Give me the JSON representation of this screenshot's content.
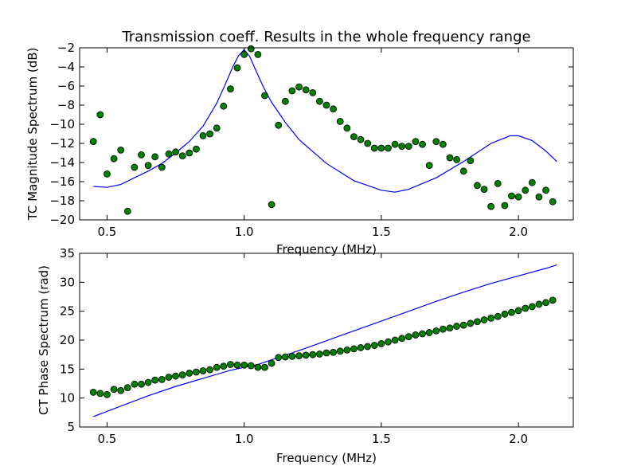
{
  "figure_title": "Transmission coeff. Results in the whole frequency range",
  "colors": {
    "line": "#0000ff",
    "marker_face": "#008000",
    "marker_edge": "#000000",
    "background": "#ffffff"
  },
  "chart_data": [
    {
      "type": "line+scatter",
      "title": "Transmission coeff. Results in the whole frequency range",
      "xlabel": "Frequency (MHz)",
      "ylabel": "TC Magnitude Spectrum (dB)",
      "xlim": [
        0.4,
        2.2
      ],
      "ylim": [
        -20,
        -2
      ],
      "xticks": [
        0.5,
        1.0,
        1.5,
        2.0
      ],
      "xtick_labels": [
        "0.5",
        "1.0",
        "1.5",
        "2.0"
      ],
      "yticks": [
        -20,
        -18,
        -16,
        -14,
        -12,
        -10,
        -8,
        -6,
        -4,
        -2
      ],
      "ytick_labels": [
        "−20",
        "−18",
        "−16",
        "−14",
        "−12",
        "−10",
        "−8",
        "−6",
        "−4",
        "−2"
      ],
      "grid": false,
      "series": [
        {
          "kind": "line",
          "x": [
            0.45,
            0.5,
            0.55,
            0.6,
            0.65,
            0.7,
            0.75,
            0.8,
            0.85,
            0.9,
            0.93,
            0.96,
            0.98,
            1.0,
            1.02,
            1.04,
            1.07,
            1.1,
            1.15,
            1.2,
            1.3,
            1.4,
            1.5,
            1.55,
            1.6,
            1.7,
            1.8,
            1.9,
            1.97,
            2.0,
            2.05,
            2.1,
            2.14
          ],
          "y": [
            -16.5,
            -16.6,
            -16.3,
            -15.6,
            -14.9,
            -14.1,
            -13.0,
            -11.8,
            -10.2,
            -7.8,
            -5.9,
            -3.9,
            -2.8,
            -2.2,
            -2.9,
            -4.2,
            -6.1,
            -7.7,
            -9.8,
            -11.6,
            -14.1,
            -15.9,
            -16.9,
            -17.1,
            -16.8,
            -15.6,
            -13.9,
            -12.0,
            -11.2,
            -11.2,
            -11.7,
            -12.8,
            -13.9
          ]
        },
        {
          "kind": "scatter",
          "x": [
            0.45,
            0.475,
            0.5,
            0.525,
            0.55,
            0.575,
            0.6,
            0.625,
            0.65,
            0.675,
            0.7,
            0.725,
            0.75,
            0.775,
            0.8,
            0.825,
            0.85,
            0.875,
            0.9,
            0.925,
            0.95,
            0.975,
            1.0,
            1.025,
            1.05,
            1.075,
            1.1,
            1.125,
            1.15,
            1.175,
            1.2,
            1.225,
            1.25,
            1.275,
            1.3,
            1.325,
            1.35,
            1.375,
            1.4,
            1.425,
            1.45,
            1.475,
            1.5,
            1.525,
            1.55,
            1.575,
            1.6,
            1.625,
            1.65,
            1.675,
            1.7,
            1.725,
            1.75,
            1.775,
            1.8,
            1.825,
            1.85,
            1.875,
            1.9,
            1.925,
            1.95,
            1.975,
            2.0,
            2.025,
            2.05,
            2.075,
            2.1,
            2.125
          ],
          "y": [
            -11.8,
            -9.0,
            -15.2,
            -13.6,
            -12.7,
            -19.1,
            -14.5,
            -13.2,
            -14.3,
            -13.4,
            -14.5,
            -13.1,
            -12.9,
            -13.3,
            -13.0,
            -12.6,
            -11.2,
            -11.0,
            -10.4,
            -8.1,
            -6.3,
            -4.1,
            -2.7,
            -2.1,
            -2.7,
            -7.0,
            -18.4,
            -10.1,
            -7.6,
            -6.5,
            -6.1,
            -6.4,
            -6.7,
            -7.6,
            -8.0,
            -8.4,
            -9.7,
            -10.4,
            -11.3,
            -11.6,
            -12.0,
            -12.5,
            -12.5,
            -12.5,
            -12.1,
            -12.3,
            -12.3,
            -11.8,
            -12.1,
            -14.3,
            -11.8,
            -12.1,
            -13.5,
            -13.7,
            -14.9,
            -13.8,
            -16.4,
            -16.8,
            -18.6,
            -16.2,
            -18.5,
            -17.5,
            -17.6,
            -16.9,
            -16.1,
            -17.6,
            -16.9,
            -18.1
          ]
        }
      ]
    },
    {
      "type": "line+scatter",
      "xlabel": "Frequency (MHz)",
      "ylabel": "CT Phase Spectrum (rad)",
      "xlim": [
        0.4,
        2.2
      ],
      "ylim": [
        5,
        35
      ],
      "xticks": [
        0.5,
        1.0,
        1.5,
        2.0
      ],
      "xtick_labels": [
        "0.5",
        "1.0",
        "1.5",
        "2.0"
      ],
      "yticks": [
        5,
        10,
        15,
        20,
        25,
        30,
        35
      ],
      "ytick_labels": [
        "5",
        "10",
        "15",
        "20",
        "25",
        "30",
        "35"
      ],
      "grid": false,
      "series": [
        {
          "kind": "line",
          "x": [
            0.45,
            0.55,
            0.65,
            0.75,
            0.85,
            0.95,
            1.0,
            1.05,
            1.1,
            1.2,
            1.3,
            1.4,
            1.5,
            1.6,
            1.7,
            1.8,
            1.9,
            2.0,
            2.1,
            2.14
          ],
          "y": [
            6.8,
            8.6,
            10.4,
            12.0,
            13.4,
            14.8,
            15.3,
            15.8,
            16.6,
            18.2,
            19.9,
            21.6,
            23.3,
            25.0,
            26.7,
            28.3,
            29.8,
            31.1,
            32.4,
            33.0
          ]
        },
        {
          "kind": "scatter",
          "x": [
            0.45,
            0.475,
            0.5,
            0.525,
            0.55,
            0.575,
            0.6,
            0.625,
            0.65,
            0.675,
            0.7,
            0.725,
            0.75,
            0.775,
            0.8,
            0.825,
            0.85,
            0.875,
            0.9,
            0.925,
            0.95,
            0.975,
            1.0,
            1.025,
            1.05,
            1.075,
            1.1,
            1.125,
            1.15,
            1.175,
            1.2,
            1.225,
            1.25,
            1.275,
            1.3,
            1.325,
            1.35,
            1.375,
            1.4,
            1.425,
            1.45,
            1.475,
            1.5,
            1.525,
            1.55,
            1.575,
            1.6,
            1.625,
            1.65,
            1.675,
            1.7,
            1.725,
            1.75,
            1.775,
            1.8,
            1.825,
            1.85,
            1.875,
            1.9,
            1.925,
            1.95,
            1.975,
            2.0,
            2.025,
            2.05,
            2.075,
            2.1,
            2.125
          ],
          "y": [
            11.0,
            10.8,
            10.6,
            11.5,
            11.3,
            11.8,
            12.4,
            12.4,
            12.7,
            13.1,
            13.2,
            13.6,
            13.8,
            14.0,
            14.3,
            14.5,
            14.7,
            14.9,
            15.3,
            15.5,
            15.8,
            15.7,
            15.7,
            15.6,
            15.3,
            15.3,
            16.0,
            17.0,
            17.1,
            17.2,
            17.3,
            17.4,
            17.5,
            17.6,
            17.8,
            17.9,
            18.1,
            18.3,
            18.5,
            18.7,
            18.9,
            19.1,
            19.4,
            19.7,
            20.0,
            20.3,
            20.6,
            20.9,
            21.1,
            21.3,
            21.6,
            21.9,
            22.1,
            22.4,
            22.6,
            22.9,
            23.2,
            23.5,
            23.8,
            24.1,
            24.5,
            24.8,
            25.1,
            25.5,
            25.8,
            26.2,
            26.5,
            26.9
          ]
        }
      ]
    }
  ]
}
